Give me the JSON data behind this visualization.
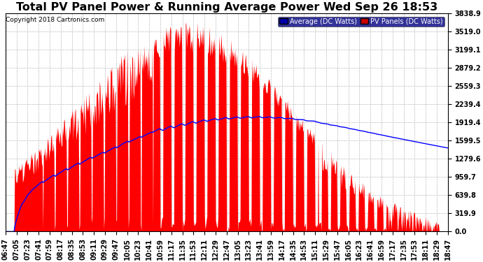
{
  "title": "Total PV Panel Power & Running Average Power Wed Sep 26 18:53",
  "copyright": "Copyright 2018 Cartronics.com",
  "legend_avg": "Average (DC Watts)",
  "legend_pv": "PV Panels (DC Watts)",
  "yticks": [
    0.0,
    319.9,
    639.8,
    959.7,
    1279.6,
    1599.5,
    1919.4,
    2239.4,
    2559.3,
    2879.2,
    3199.1,
    3519.0,
    3838.9
  ],
  "ymax": 3838.9,
  "pv_color": "#FF0000",
  "avg_color": "#0000FF",
  "background_color": "#FFFFFF",
  "grid_color": "#BBBBBB",
  "title_fontsize": 11.5,
  "tick_fontsize": 7.0,
  "legend_bg_avg": "#0000AA",
  "legend_bg_pv": "#CC0000"
}
